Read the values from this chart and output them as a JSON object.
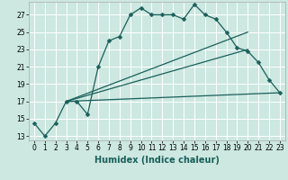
{
  "xlabel": "Humidex (Indice chaleur)",
  "bg_color": "#cce8e0",
  "grid_color": "#ffffff",
  "line_color": "#1a5f5a",
  "xlim": [
    -0.5,
    23.5
  ],
  "ylim": [
    12.5,
    28.5
  ],
  "yticks": [
    13,
    15,
    17,
    19,
    21,
    23,
    25,
    27
  ],
  "xticks": [
    0,
    1,
    2,
    3,
    4,
    5,
    6,
    7,
    8,
    9,
    10,
    11,
    12,
    13,
    14,
    15,
    16,
    17,
    18,
    19,
    20,
    21,
    22,
    23
  ],
  "line1_x": [
    0,
    1,
    2,
    3,
    4,
    5,
    6,
    7,
    8,
    9,
    10,
    11,
    12,
    13,
    14,
    15,
    16,
    17,
    18,
    19,
    20,
    21,
    22,
    23
  ],
  "line1_y": [
    14.5,
    13.0,
    14.5,
    17.0,
    17.0,
    15.5,
    21.0,
    24.0,
    24.5,
    27.0,
    27.8,
    27.0,
    27.0,
    27.0,
    26.5,
    28.2,
    27.0,
    26.5,
    25.0,
    23.2,
    22.8,
    21.5,
    19.5,
    18.0
  ],
  "line2_x": [
    3,
    23
  ],
  "line2_y": [
    17.0,
    18.0
  ],
  "line3_x": [
    3,
    20
  ],
  "line3_y": [
    17.0,
    23.0
  ],
  "line4_x": [
    3,
    20
  ],
  "line4_y": [
    17.0,
    25.0
  ],
  "markersize": 2.5,
  "linewidth": 0.9,
  "xlabel_fontsize": 7,
  "tick_fontsize": 5.5
}
